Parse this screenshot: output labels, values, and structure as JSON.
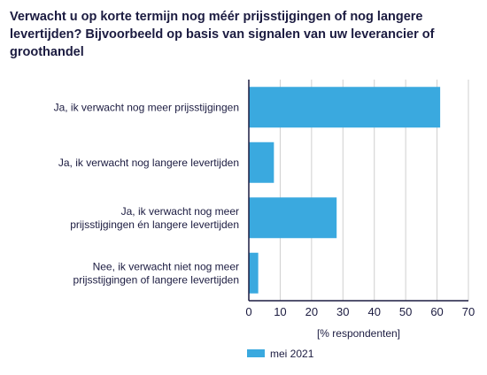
{
  "chart_data": {
    "type": "bar",
    "orientation": "horizontal",
    "title": "Verwacht u op korte termijn nog méér prijsstijgingen of nog langere levertijden? Bijvoorbeeld op basis van signalen van uw leverancier of groothandel",
    "categories": [
      [
        "Ja, ik verwacht nog meer prijsstijgingen"
      ],
      [
        "Ja, ik verwacht nog langere levertijden"
      ],
      [
        "Ja, ik verwacht nog meer",
        "prijsstijgingen én langere levertijden"
      ],
      [
        "Nee, ik verwacht niet nog meer",
        "prijsstijgingen of langere levertijden"
      ]
    ],
    "series": [
      {
        "name": "mei 2021",
        "values": [
          61,
          8,
          28,
          3
        ]
      }
    ],
    "xlabel": "[% respondenten]",
    "xlim": [
      0,
      70
    ],
    "xticks": [
      0,
      10,
      20,
      30,
      40,
      50,
      60,
      70
    ],
    "legend_position": "bottom-left",
    "grid": true,
    "colors": {
      "bar": "#3aa9df",
      "grid": "#cfcfcf",
      "axis": "#1b1b40",
      "text": "#1b1b40"
    }
  }
}
